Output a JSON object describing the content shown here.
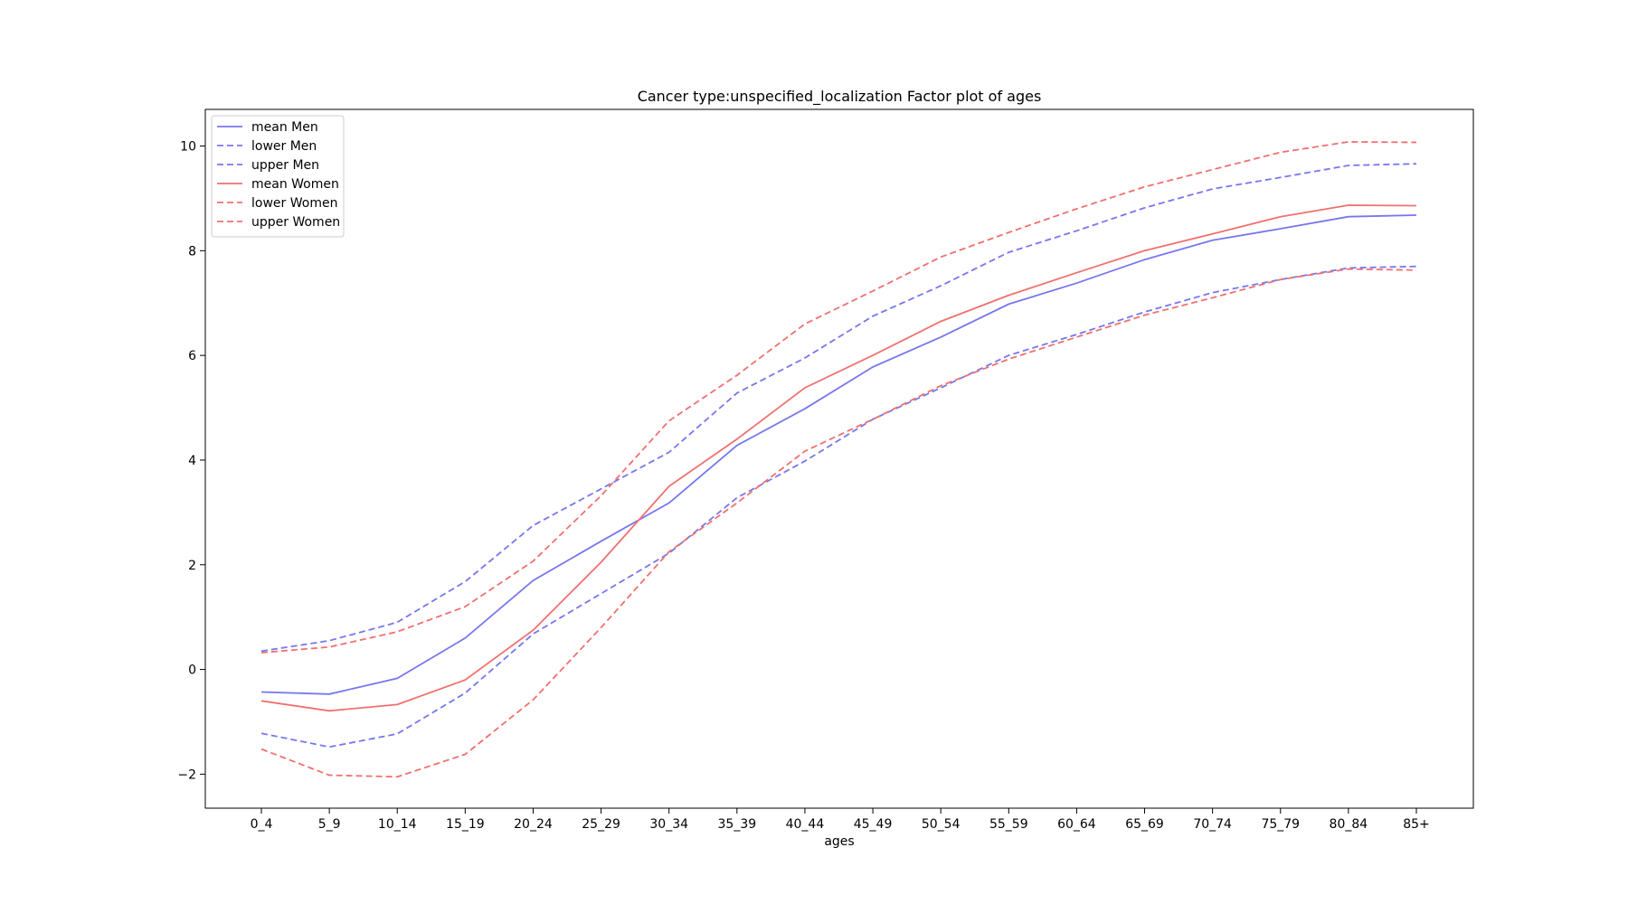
{
  "chart_data": {
    "type": "line",
    "title": "Cancer type:unspecified_localization Factor plot of ages",
    "xlabel": "ages",
    "ylabel": "",
    "categories": [
      "0_4",
      "5_9",
      "10_14",
      "15_19",
      "20_24",
      "25_29",
      "30_34",
      "35_39",
      "40_44",
      "45_49",
      "50_54",
      "55_59",
      "60_64",
      "65_69",
      "70_74",
      "75_79",
      "80_84",
      "85+"
    ],
    "yticks": [
      -2,
      0,
      2,
      4,
      6,
      8,
      10
    ],
    "ylim": [
      -2.65,
      10.7
    ],
    "grid": false,
    "legend_position": "upper-left",
    "series": [
      {
        "name": "mean Men",
        "color": "#7777ee",
        "style": "solid",
        "values": [
          -0.43,
          -0.47,
          -0.17,
          0.6,
          1.7,
          2.45,
          3.18,
          4.28,
          4.98,
          5.78,
          6.35,
          6.98,
          7.38,
          7.83,
          8.2,
          8.42,
          8.65,
          8.68
        ]
      },
      {
        "name": "lower Men",
        "color": "#7777ee",
        "style": "dashed",
        "values": [
          -1.22,
          -1.48,
          -1.23,
          -0.45,
          0.68,
          1.45,
          2.22,
          3.28,
          3.98,
          4.78,
          5.38,
          6.0,
          6.4,
          6.83,
          7.2,
          7.45,
          7.67,
          7.7
        ]
      },
      {
        "name": "upper Men",
        "color": "#7777ee",
        "style": "dashed",
        "values": [
          0.35,
          0.55,
          0.9,
          1.68,
          2.75,
          3.45,
          4.15,
          5.28,
          5.95,
          6.75,
          7.33,
          7.97,
          8.38,
          8.82,
          9.18,
          9.4,
          9.63,
          9.66
        ]
      },
      {
        "name": "mean Women",
        "color": "#f07070",
        "style": "solid",
        "values": [
          -0.6,
          -0.79,
          -0.67,
          -0.2,
          0.75,
          2.05,
          3.5,
          4.4,
          5.38,
          6.0,
          6.65,
          7.15,
          7.58,
          8.0,
          8.32,
          8.65,
          8.87,
          8.86
        ]
      },
      {
        "name": "lower Women",
        "color": "#f07070",
        "style": "dashed",
        "values": [
          -1.52,
          -2.02,
          -2.05,
          -1.62,
          -0.58,
          0.8,
          2.25,
          3.18,
          4.17,
          4.78,
          5.42,
          5.93,
          6.35,
          6.77,
          7.1,
          7.45,
          7.65,
          7.63
        ]
      },
      {
        "name": "upper Women",
        "color": "#f07070",
        "style": "dashed",
        "values": [
          0.32,
          0.43,
          0.72,
          1.2,
          2.07,
          3.32,
          4.75,
          5.62,
          6.6,
          7.23,
          7.88,
          8.35,
          8.8,
          9.22,
          9.55,
          9.88,
          10.08,
          10.07
        ]
      }
    ]
  }
}
